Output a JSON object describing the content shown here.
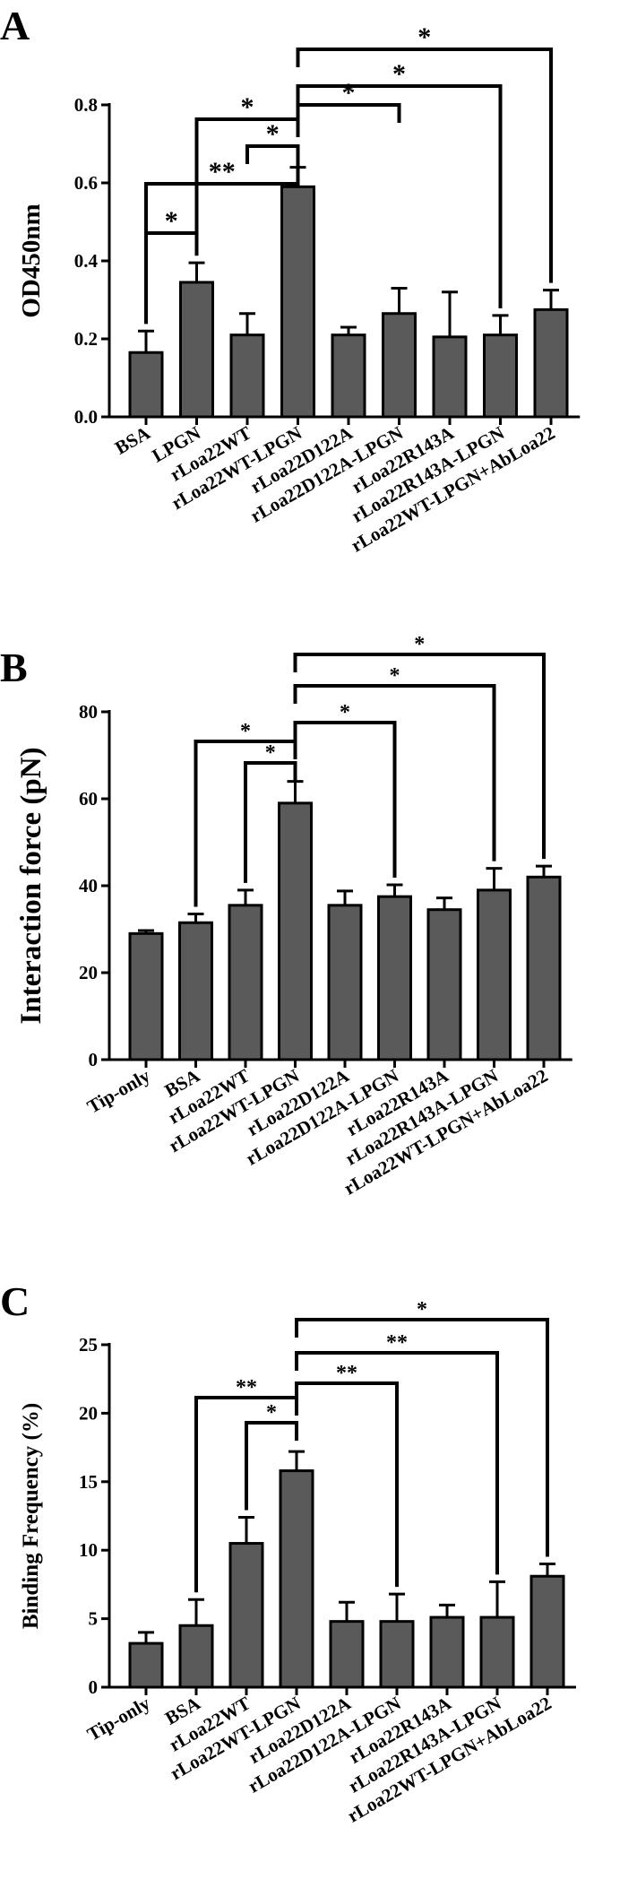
{
  "chart_data": [
    {
      "panel_label": "A",
      "type": "bar",
      "ylabel": "OD450nm",
      "ylim": [
        0,
        0.8
      ],
      "yticks": [
        0.0,
        0.2,
        0.4,
        0.6,
        0.8
      ],
      "ytick_labels": [
        "0.0",
        "0.2",
        "0.4",
        "0.6",
        "0.8"
      ],
      "categories": [
        "BSA",
        "LPGN",
        "rLoa22WT",
        "rLoa22WT-LPGN",
        "rLoa22D122A",
        "rLoa22D122A-LPGN",
        "rLoa22R143A",
        "rLoa22R143A-LPGN",
        "rLoa22WT-LPGN+AbLoa22"
      ],
      "values": [
        0.165,
        0.345,
        0.21,
        0.59,
        0.21,
        0.265,
        0.205,
        0.21,
        0.275
      ],
      "errors": [
        0.055,
        0.05,
        0.055,
        0.05,
        0.02,
        0.065,
        0.115,
        0.05,
        0.05
      ],
      "significance": [
        {
          "from": "BSA",
          "to": "LPGN",
          "label": "*"
        },
        {
          "from": "BSA",
          "to": "rLoa22WT-LPGN",
          "label": "**"
        },
        {
          "from": "LPGN",
          "to": "rLoa22WT-LPGN",
          "label": "*"
        },
        {
          "from": "rLoa22WT",
          "to": "rLoa22WT-LPGN",
          "label": "*"
        },
        {
          "from": "rLoa22WT-LPGN",
          "to": "rLoa22D122A-LPGN",
          "label": "*"
        },
        {
          "from": "rLoa22WT-LPGN",
          "to": "rLoa22R143A-LPGN",
          "label": "*"
        },
        {
          "from": "rLoa22WT-LPGN",
          "to": "rLoa22WT-LPGN+AbLoa22",
          "label": "*"
        }
      ]
    },
    {
      "panel_label": "B",
      "type": "bar",
      "ylabel": "Interaction force (pN)",
      "ylim": [
        0,
        80
      ],
      "yticks": [
        0,
        20,
        40,
        60,
        80
      ],
      "ytick_labels": [
        "0",
        "20",
        "40",
        "60",
        "80"
      ],
      "categories": [
        "Tip-only",
        "BSA",
        "rLoa22WT",
        "rLoa22WT-LPGN",
        "rLoa22D122A",
        "rLoa22D122A-LPGN",
        "rLoa22R143A",
        "rLoa22R143A-LPGN",
        "rLoa22WT-LPGN+AbLoa22"
      ],
      "values": [
        29,
        31.5,
        35.5,
        59,
        35.5,
        37.5,
        34.5,
        39,
        42
      ],
      "errors": [
        0.7,
        2,
        3.5,
        5,
        3.3,
        2.7,
        2.7,
        5,
        2.5
      ],
      "significance": [
        {
          "from": "BSA",
          "to": "rLoa22WT-LPGN",
          "label": "*"
        },
        {
          "from": "rLoa22WT",
          "to": "rLoa22WT-LPGN",
          "label": "*"
        },
        {
          "from": "rLoa22WT-LPGN",
          "to": "rLoa22D122A-LPGN",
          "label": "*"
        },
        {
          "from": "rLoa22WT-LPGN",
          "to": "rLoa22R143A-LPGN",
          "label": "*"
        },
        {
          "from": "rLoa22WT-LPGN",
          "to": "rLoa22WT-LPGN+AbLoa22",
          "label": "*"
        }
      ]
    },
    {
      "panel_label": "C",
      "type": "bar",
      "ylabel": "Binding Frequency (%)",
      "ylim": [
        0,
        25
      ],
      "yticks": [
        0,
        5,
        10,
        15,
        20,
        25
      ],
      "ytick_labels": [
        "0",
        "5",
        "10",
        "15",
        "20",
        "25"
      ],
      "categories": [
        "Tip-only",
        "BSA",
        "rLoa22WT",
        "rLoa22WT-LPGN",
        "rLoa22D122A",
        "rLoa22D122A-LPGN",
        "rLoa22R143A",
        "rLoa22R143A-LPGN",
        "rLoa22WT-LPGN+AbLoa22"
      ],
      "values": [
        3.2,
        4.5,
        10.5,
        15.8,
        4.8,
        4.8,
        5.1,
        5.1,
        8.1
      ],
      "errors": [
        0.8,
        1.9,
        1.9,
        1.4,
        1.4,
        2.0,
        0.9,
        2.6,
        0.9
      ],
      "significance": [
        {
          "from": "BSA",
          "to": "rLoa22WT-LPGN",
          "label": "**"
        },
        {
          "from": "rLoa22WT",
          "to": "rLoa22WT-LPGN",
          "label": "*"
        },
        {
          "from": "rLoa22WT-LPGN",
          "to": "rLoa22D122A-LPGN",
          "label": "**"
        },
        {
          "from": "rLoa22WT-LPGN",
          "to": "rLoa22R143A-LPGN",
          "label": "**"
        },
        {
          "from": "rLoa22WT-LPGN",
          "to": "rLoa22WT-LPGN+AbLoa22",
          "label": "*"
        }
      ]
    }
  ],
  "colors": {
    "bar_fill": "#5a5a5a",
    "stroke": "#000000",
    "background": "#ffffff"
  }
}
